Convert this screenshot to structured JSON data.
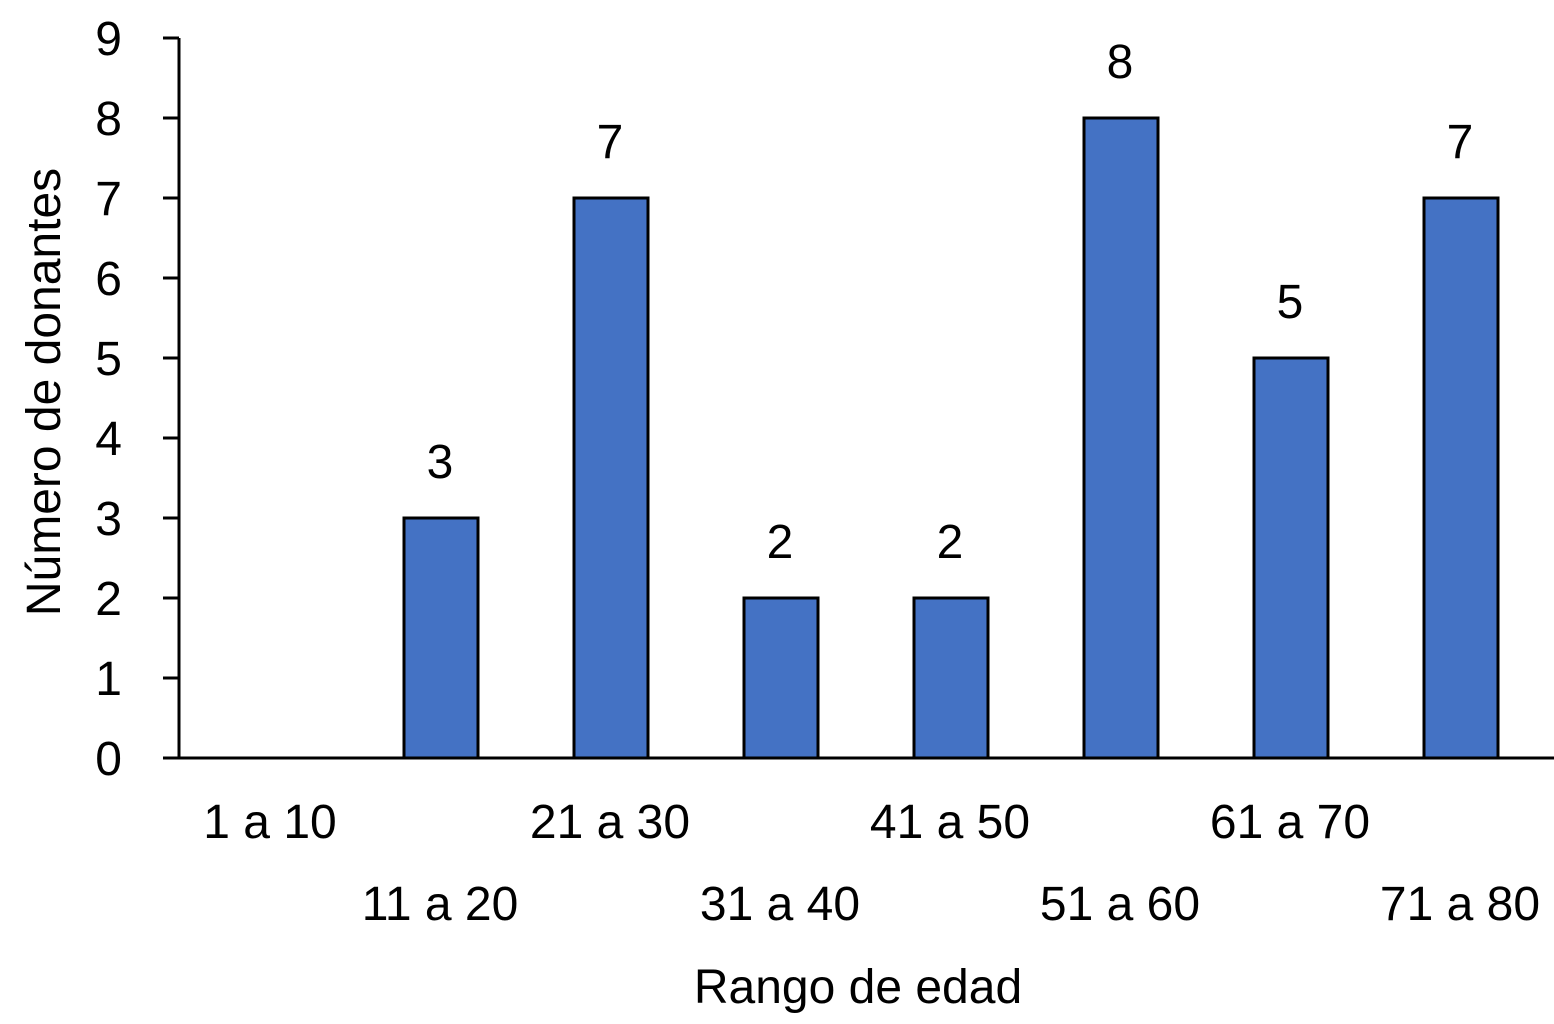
{
  "chart_data": {
    "type": "bar",
    "categories": [
      "1 a 10",
      "11 a 20",
      "21 a 30",
      "31 a 40",
      "41 a 50",
      "51 a 60",
      "61 a 70",
      "71 a 80"
    ],
    "values": [
      0,
      3,
      7,
      2,
      2,
      8,
      5,
      7
    ],
    "data_labels": [
      "",
      "3",
      "7",
      "2",
      "2",
      "8",
      "5",
      "7"
    ],
    "xlabel": "Rango de edad",
    "ylabel": "Número de donantes",
    "ylim": [
      0,
      9
    ],
    "yticks": [
      "0",
      "1",
      "2",
      "3",
      "4",
      "5",
      "6",
      "7",
      "8",
      "9"
    ],
    "grid": false,
    "legend": "none",
    "colors": {
      "bar_fill": "#4472C4",
      "bar_stroke": "#000000",
      "axis": "#000000"
    }
  }
}
